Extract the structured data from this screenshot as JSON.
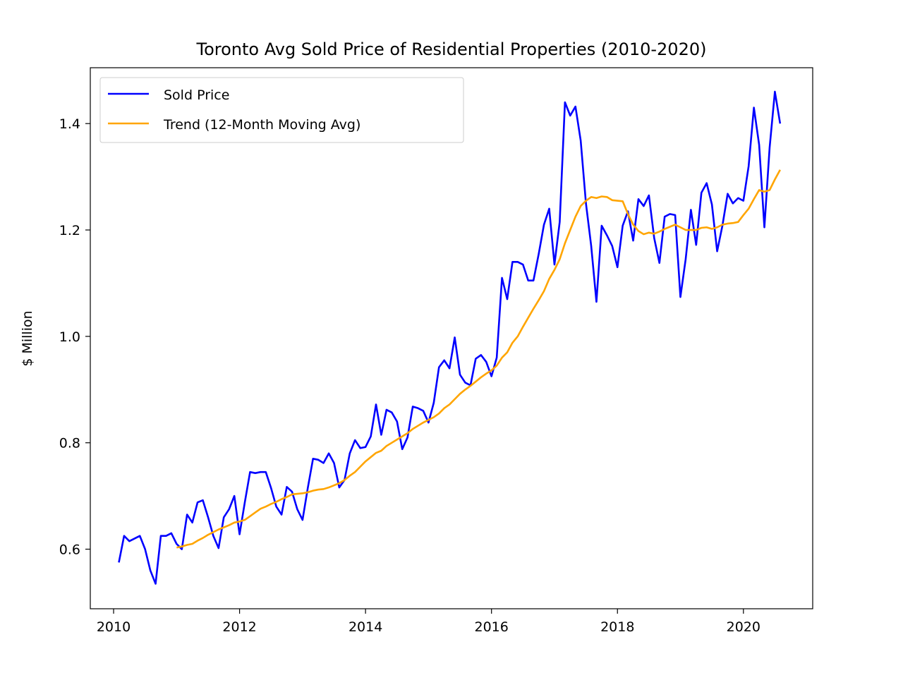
{
  "chart_data": {
    "type": "line",
    "title": "Toronto Avg Sold Price of Residential Properties (2010-2020)",
    "xlabel": "",
    "ylabel": "$ Million",
    "xlim": [
      2009.63,
      2021.1
    ],
    "ylim": [
      0.488,
      1.505
    ],
    "x_ticks": [
      2010,
      2012,
      2014,
      2016,
      2018,
      2020
    ],
    "x_tick_labels": [
      "2010",
      "2012",
      "2014",
      "2016",
      "2018",
      "2020"
    ],
    "y_ticks": [
      0.6,
      0.8,
      1.0,
      1.2,
      1.4
    ],
    "y_tick_labels": [
      "0.6",
      "0.8",
      "1.0",
      "1.2",
      "1.4"
    ],
    "grid": false,
    "legend_position": "top-left",
    "x_start": 2010.0833,
    "x_step": 0.08333,
    "series": [
      {
        "name": "Sold Price",
        "color": "#0000ff",
        "values": [
          0.575,
          0.625,
          0.615,
          0.62,
          0.625,
          0.6,
          0.56,
          0.535,
          0.625,
          0.625,
          0.63,
          0.61,
          0.6,
          0.665,
          0.65,
          0.688,
          0.692,
          0.66,
          0.625,
          0.602,
          0.66,
          0.675,
          0.7,
          0.628,
          0.688,
          0.745,
          0.743,
          0.745,
          0.745,
          0.715,
          0.68,
          0.665,
          0.717,
          0.708,
          0.675,
          0.655,
          0.715,
          0.77,
          0.768,
          0.762,
          0.78,
          0.762,
          0.716,
          0.73,
          0.78,
          0.805,
          0.79,
          0.792,
          0.812,
          0.872,
          0.815,
          0.862,
          0.857,
          0.84,
          0.788,
          0.81,
          0.868,
          0.865,
          0.86,
          0.838,
          0.875,
          0.942,
          0.955,
          0.94,
          0.998,
          0.928,
          0.913,
          0.908,
          0.958,
          0.965,
          0.952,
          0.925,
          0.96,
          1.11,
          1.07,
          1.14,
          1.14,
          1.135,
          1.105,
          1.105,
          1.155,
          1.21,
          1.24,
          1.135,
          1.215,
          1.44,
          1.415,
          1.432,
          1.368,
          1.25,
          1.17,
          1.065,
          1.208,
          1.19,
          1.17,
          1.13,
          1.208,
          1.235,
          1.18,
          1.258,
          1.245,
          1.265,
          1.185,
          1.138,
          1.225,
          1.23,
          1.228,
          1.074,
          1.145,
          1.238,
          1.172,
          1.27,
          1.288,
          1.248,
          1.16,
          1.208,
          1.268,
          1.25,
          1.26,
          1.255,
          1.32,
          1.43,
          1.36,
          1.205,
          1.355,
          1.46,
          1.4
        ]
      },
      {
        "name": "Trend (12-Month Moving Avg)",
        "color": "#ffa500",
        "values": [
          null,
          null,
          null,
          null,
          null,
          null,
          null,
          null,
          null,
          null,
          null,
          0.603,
          0.605,
          0.608,
          0.61,
          0.616,
          0.621,
          0.627,
          0.632,
          0.637,
          0.641,
          0.645,
          0.65,
          0.652,
          0.655,
          0.662,
          0.669,
          0.676,
          0.68,
          0.685,
          0.689,
          0.694,
          0.698,
          0.703,
          0.704,
          0.705,
          0.707,
          0.71,
          0.712,
          0.713,
          0.716,
          0.72,
          0.724,
          0.73,
          0.738,
          0.745,
          0.755,
          0.765,
          0.773,
          0.781,
          0.785,
          0.794,
          0.8,
          0.806,
          0.812,
          0.818,
          0.826,
          0.832,
          0.838,
          0.843,
          0.848,
          0.855,
          0.865,
          0.872,
          0.882,
          0.892,
          0.9,
          0.907,
          0.915,
          0.923,
          0.93,
          0.936,
          0.945,
          0.96,
          0.97,
          0.988,
          1.0,
          1.018,
          1.035,
          1.052,
          1.068,
          1.085,
          1.108,
          1.125,
          1.145,
          1.175,
          1.2,
          1.225,
          1.245,
          1.255,
          1.262,
          1.26,
          1.263,
          1.262,
          1.256,
          1.255,
          1.254,
          1.23,
          1.21,
          1.198,
          1.192,
          1.195,
          1.193,
          1.197,
          1.202,
          1.206,
          1.21,
          1.205,
          1.2,
          1.2,
          1.2,
          1.204,
          1.205,
          1.202,
          1.205,
          1.21,
          1.212,
          1.213,
          1.215,
          1.228,
          1.24,
          1.258,
          1.275,
          1.272,
          1.275,
          1.295,
          1.313
        ]
      }
    ]
  }
}
